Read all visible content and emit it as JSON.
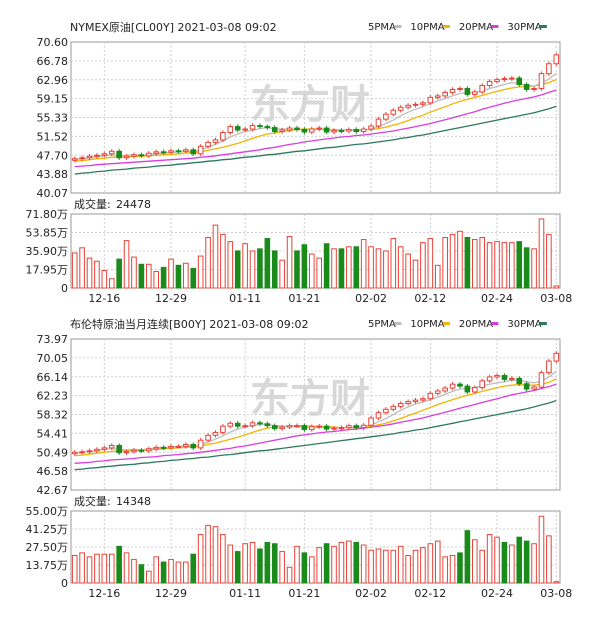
{
  "colors": {
    "up": "#e8443a",
    "down": "#1a8a1a",
    "ma5": "#bdbdbd",
    "ma10": "#f2b400",
    "ma20": "#d93de0",
    "ma30": "#2d7a5a",
    "grid": "#cfcfcf",
    "frame": "#9a9a9a"
  },
  "watermark": "东方财",
  "x_labels": [
    "12-16",
    "12-29",
    "01-11",
    "01-21",
    "02-02",
    "02-12",
    "02-24",
    "03-08"
  ],
  "x_label_index": [
    4,
    13,
    23,
    31,
    40,
    48,
    57,
    65
  ],
  "legend": [
    {
      "label": "5PMA",
      "color": "#bdbdbd"
    },
    {
      "label": "10PMA",
      "color": "#f2b400"
    },
    {
      "label": "20PMA",
      "color": "#d93de0"
    },
    {
      "label": "30PMA",
      "color": "#2d7a5a"
    }
  ],
  "chart_data": [
    {
      "type": "candlestick",
      "title": "NYMEX原油[CL00Y] 2021-03-08 09:02",
      "y_ticks": [
        "70.60",
        "66.78",
        "62.96",
        "59.15",
        "55.33",
        "51.52",
        "47.70",
        "43.88",
        "40.07"
      ],
      "ylim": [
        40.07,
        70.6
      ],
      "closes": [
        47.0,
        47.2,
        47.5,
        47.7,
        48.0,
        48.5,
        47.2,
        47.5,
        47.8,
        47.6,
        48.1,
        48.4,
        48.3,
        48.6,
        48.5,
        48.8,
        48.0,
        49.5,
        50.3,
        50.8,
        52.3,
        53.5,
        52.8,
        53.0,
        53.7,
        53.5,
        53.3,
        52.5,
        52.8,
        53.2,
        52.9,
        52.4,
        53.0,
        53.2,
        52.4,
        52.7,
        52.6,
        52.9,
        52.5,
        53.0,
        53.6,
        55.0,
        56.0,
        56.8,
        57.4,
        57.8,
        58.0,
        58.3,
        59.4,
        59.7,
        60.4,
        61.0,
        61.2,
        60.0,
        60.5,
        61.8,
        62.6,
        63.0,
        63.2,
        63.3,
        62.0,
        61.0,
        61.2,
        64.2,
        66.2,
        68.0
      ],
      "ma5": [
        46.8,
        47.0,
        47.2,
        47.4,
        47.6,
        47.8,
        47.6,
        47.7,
        47.8,
        47.7,
        47.8,
        48.0,
        48.1,
        48.3,
        48.4,
        48.6,
        48.4,
        48.8,
        49.3,
        49.9,
        50.6,
        51.4,
        52.0,
        52.5,
        52.7,
        53.1,
        53.3,
        53.0,
        53.0,
        53.0,
        52.9,
        52.8,
        52.8,
        52.9,
        52.8,
        52.8,
        52.7,
        52.8,
        52.7,
        52.7,
        53.0,
        53.5,
        54.1,
        54.8,
        55.7,
        56.4,
        57.0,
        57.5,
        58.1,
        58.7,
        59.2,
        59.7,
        60.2,
        60.3,
        60.4,
        60.7,
        61.2,
        61.6,
        62.0,
        62.4,
        62.2,
        61.8,
        61.7,
        62.3,
        63.1,
        64.3
      ],
      "ma10": [
        46.5,
        46.6,
        46.8,
        47.0,
        47.1,
        47.3,
        47.3,
        47.4,
        47.5,
        47.5,
        47.6,
        47.7,
        47.8,
        47.9,
        48.0,
        48.2,
        48.2,
        48.4,
        48.7,
        49.0,
        49.3,
        49.7,
        50.1,
        50.6,
        51.1,
        51.6,
        52.0,
        52.2,
        52.5,
        52.7,
        52.9,
        53.0,
        53.0,
        53.0,
        52.9,
        52.9,
        52.8,
        52.8,
        52.8,
        52.8,
        52.9,
        53.1,
        53.4,
        53.8,
        54.2,
        54.7,
        55.3,
        55.8,
        56.4,
        57.0,
        57.5,
        58.1,
        58.6,
        59.0,
        59.4,
        59.8,
        60.2,
        60.6,
        61.0,
        61.3,
        61.5,
        61.6,
        61.7,
        62.0,
        62.4,
        63.0
      ],
      "ma20": [
        45.4,
        45.5,
        45.6,
        45.8,
        45.9,
        46.0,
        46.1,
        46.2,
        46.3,
        46.4,
        46.5,
        46.6,
        46.7,
        46.8,
        46.9,
        47.0,
        47.1,
        47.3,
        47.4,
        47.6,
        47.8,
        48.0,
        48.2,
        48.4,
        48.6,
        48.8,
        49.1,
        49.3,
        49.6,
        49.9,
        50.1,
        50.4,
        50.6,
        50.8,
        51.0,
        51.2,
        51.4,
        51.5,
        51.7,
        51.8,
        52.0,
        52.2,
        52.4,
        52.6,
        52.9,
        53.2,
        53.5,
        53.8,
        54.1,
        54.5,
        54.9,
        55.3,
        55.7,
        56.1,
        56.5,
        57.0,
        57.4,
        57.8,
        58.2,
        58.6,
        58.9,
        59.2,
        59.5,
        59.9,
        60.4,
        60.9
      ],
      "ma30": [
        43.9,
        44.1,
        44.2,
        44.4,
        44.5,
        44.7,
        44.8,
        44.9,
        45.1,
        45.2,
        45.3,
        45.5,
        45.6,
        45.7,
        45.9,
        46.0,
        46.2,
        46.3,
        46.5,
        46.6,
        46.8,
        46.9,
        47.1,
        47.3,
        47.4,
        47.6,
        47.8,
        47.9,
        48.1,
        48.3,
        48.5,
        48.6,
        48.8,
        49.0,
        49.2,
        49.3,
        49.5,
        49.7,
        49.9,
        50.0,
        50.2,
        50.4,
        50.6,
        50.8,
        51.1,
        51.3,
        51.6,
        51.8,
        52.1,
        52.4,
        52.7,
        53.0,
        53.3,
        53.6,
        53.9,
        54.2,
        54.5,
        54.8,
        55.1,
        55.4,
        55.7,
        56.0,
        56.3,
        56.7,
        57.1,
        57.6
      ],
      "volume_label": "成交量:",
      "volume_value": "24478",
      "vol_ticks": [
        "71.80万",
        "53.85万",
        "35.90万",
        "17.95万",
        "0"
      ],
      "vol_max": 71.8,
      "volumes": [
        34,
        39,
        29,
        26,
        17,
        9,
        28,
        46,
        30,
        23,
        23,
        16,
        20,
        28,
        22,
        24,
        19,
        31,
        49,
        61,
        52,
        45,
        36,
        43,
        36,
        38,
        48,
        36,
        27,
        50,
        36,
        42,
        33,
        29,
        43,
        38,
        38,
        40,
        40,
        47,
        40,
        38,
        36,
        48,
        40,
        33,
        27,
        44,
        48,
        22,
        49,
        52,
        55,
        49,
        47,
        49,
        44,
        45,
        44,
        44,
        45,
        39,
        38,
        67,
        52,
        2
      ]
    },
    {
      "type": "candlestick",
      "title": "布伦特原油当月连续[B00Y] 2021-03-08 09:02",
      "y_ticks": [
        "73.97",
        "70.05",
        "66.14",
        "62.23",
        "58.32",
        "54.41",
        "50.49",
        "46.58",
        "42.67"
      ],
      "ylim": [
        42.67,
        73.97
      ],
      "closes": [
        50.5,
        50.6,
        50.8,
        51.1,
        51.4,
        51.9,
        50.4,
        50.6,
        50.9,
        50.8,
        51.2,
        51.5,
        51.4,
        51.7,
        51.7,
        52.1,
        51.4,
        53.0,
        54.0,
        54.6,
        55.9,
        56.5,
        55.9,
        56.0,
        56.6,
        56.4,
        56.0,
        55.4,
        55.7,
        56.0,
        56.0,
        55.2,
        55.8,
        55.9,
        55.3,
        55.5,
        55.6,
        56.0,
        55.6,
        56.1,
        57.6,
        58.7,
        59.4,
        60.0,
        60.6,
        61.0,
        61.3,
        61.6,
        62.7,
        63.2,
        63.8,
        64.6,
        64.2,
        63.0,
        63.9,
        65.3,
        66.1,
        66.4,
        65.6,
        65.8,
        64.7,
        63.6,
        64.0,
        67.0,
        69.4,
        71.0
      ],
      "ma5": [
        50.3,
        50.4,
        50.6,
        50.8,
        51.1,
        51.3,
        51.0,
        51.0,
        51.1,
        51.0,
        51.2,
        51.4,
        51.5,
        51.6,
        51.7,
        51.9,
        51.7,
        52.1,
        52.6,
        53.2,
        53.9,
        54.7,
        55.3,
        55.7,
        56.0,
        56.3,
        56.3,
        56.0,
        55.9,
        55.9,
        55.8,
        55.6,
        55.6,
        55.7,
        55.6,
        55.6,
        55.6,
        55.7,
        55.7,
        55.8,
        56.2,
        56.8,
        57.5,
        58.3,
        59.2,
        59.9,
        60.5,
        60.9,
        61.4,
        61.9,
        62.5,
        63.1,
        63.6,
        63.7,
        63.9,
        64.3,
        64.6,
        64.9,
        65.1,
        65.4,
        65.4,
        65.1,
        64.9,
        65.2,
        66.1,
        67.3
      ],
      "ma10": [
        49.8,
        49.9,
        50.1,
        50.3,
        50.5,
        50.7,
        50.7,
        50.8,
        50.9,
        50.9,
        51.0,
        51.1,
        51.2,
        51.3,
        51.4,
        51.5,
        51.6,
        51.8,
        52.1,
        52.4,
        52.8,
        53.2,
        53.6,
        54.1,
        54.6,
        55.1,
        55.5,
        55.7,
        55.8,
        55.9,
        56.0,
        56.0,
        55.9,
        55.9,
        55.8,
        55.7,
        55.6,
        55.6,
        55.6,
        55.7,
        55.9,
        56.2,
        56.5,
        57.0,
        57.5,
        58.1,
        58.6,
        59.2,
        59.8,
        60.4,
        60.9,
        61.4,
        61.9,
        62.3,
        62.7,
        63.1,
        63.5,
        63.9,
        64.2,
        64.4,
        64.5,
        64.4,
        64.4,
        64.6,
        65.0,
        65.7
      ],
      "ma20": [
        48.2,
        48.3,
        48.4,
        48.6,
        48.7,
        48.9,
        49.0,
        49.1,
        49.2,
        49.4,
        49.5,
        49.6,
        49.8,
        49.9,
        50.0,
        50.2,
        50.3,
        50.5,
        50.7,
        50.9,
        51.1,
        51.3,
        51.6,
        51.8,
        52.1,
        52.4,
        52.7,
        53.0,
        53.3,
        53.6,
        53.9,
        54.1,
        54.3,
        54.5,
        54.7,
        54.8,
        55.0,
        55.2,
        55.3,
        55.5,
        55.7,
        55.9,
        56.1,
        56.4,
        56.7,
        57.0,
        57.3,
        57.6,
        58.0,
        58.4,
        58.8,
        59.2,
        59.6,
        60.0,
        60.4,
        60.8,
        61.2,
        61.6,
        62.0,
        62.4,
        62.7,
        63.0,
        63.3,
        63.7,
        64.1,
        64.6
      ],
      "ma30": [
        46.9,
        47.0,
        47.2,
        47.3,
        47.5,
        47.6,
        47.8,
        47.9,
        48.0,
        48.2,
        48.3,
        48.5,
        48.6,
        48.8,
        48.9,
        49.1,
        49.2,
        49.4,
        49.5,
        49.7,
        49.9,
        50.0,
        50.2,
        50.4,
        50.6,
        50.8,
        50.9,
        51.1,
        51.3,
        51.5,
        51.7,
        51.9,
        52.1,
        52.3,
        52.5,
        52.7,
        52.9,
        53.1,
        53.3,
        53.5,
        53.7,
        53.9,
        54.1,
        54.3,
        54.6,
        54.8,
        55.1,
        55.3,
        55.6,
        55.9,
        56.2,
        56.5,
        56.8,
        57.1,
        57.4,
        57.7,
        58.0,
        58.3,
        58.6,
        58.9,
        59.2,
        59.5,
        59.9,
        60.3,
        60.7,
        61.2
      ],
      "volume_label": "成交量:",
      "volume_value": "14348",
      "vol_ticks": [
        "55.00万",
        "41.25万",
        "27.50万",
        "13.75万",
        "0"
      ],
      "vol_max": 55.0,
      "volumes": [
        21,
        23,
        20,
        22,
        22,
        22,
        28,
        23,
        18,
        14,
        9,
        20,
        16,
        18,
        16,
        16,
        22,
        37,
        44,
        43,
        37,
        29,
        24,
        30,
        31,
        26,
        31,
        30,
        24,
        12,
        28,
        23,
        20,
        27,
        30,
        28,
        31,
        32,
        31,
        29,
        25,
        26,
        25,
        25,
        28,
        21,
        25,
        27,
        30,
        32,
        20,
        21,
        23,
        40,
        33,
        25,
        37,
        35,
        31,
        29,
        35,
        32,
        30,
        51,
        36,
        1
      ]
    }
  ]
}
